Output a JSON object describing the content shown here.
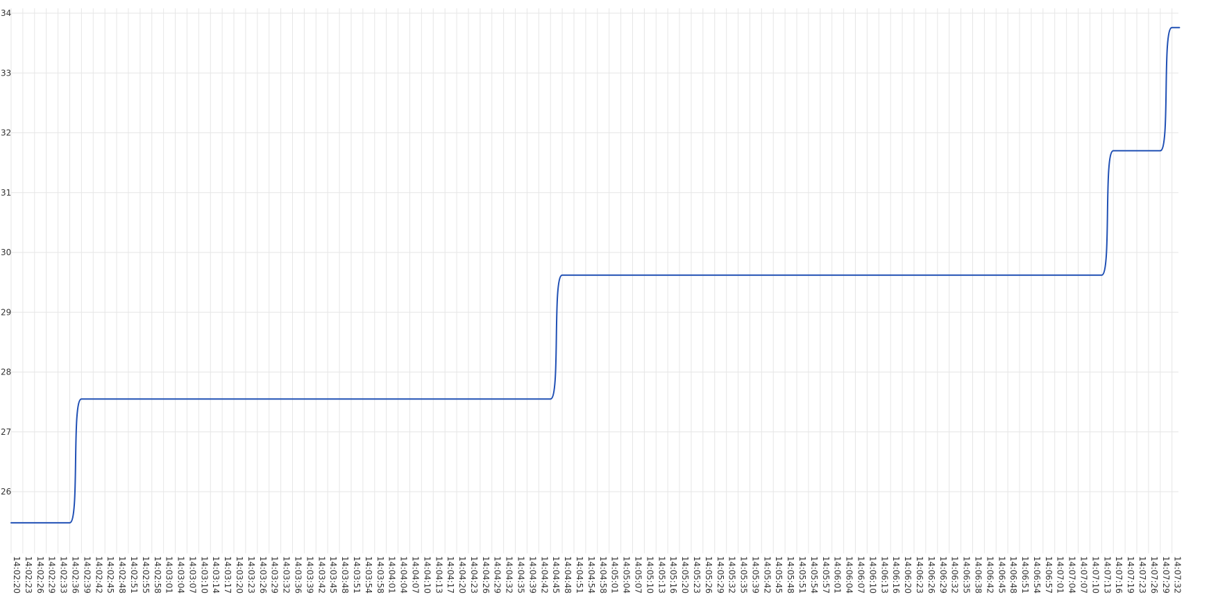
{
  "chart_data": {
    "type": "line",
    "title": "",
    "xlabel": "",
    "ylabel": "",
    "ylim": [
      25.3,
      34.2
    ],
    "yticks": [
      26,
      27,
      28,
      29,
      30,
      31,
      32,
      33,
      34
    ],
    "grid": true,
    "legend": "none",
    "color": "#1f4fb4",
    "x_ticks": [
      "14:02:20",
      "14:02:23",
      "14:02:26",
      "14:02:29",
      "14:02:33",
      "14:02:36",
      "14:02:39",
      "14:02:42",
      "14:02:45",
      "14:02:48",
      "14:02:51",
      "14:02:55",
      "14:02:58",
      "14:03:01",
      "14:03:04",
      "14:03:07",
      "14:03:10",
      "14:03:14",
      "14:03:17",
      "14:03:20",
      "14:03:23",
      "14:03:26",
      "14:03:29",
      "14:03:32",
      "14:03:36",
      "14:03:39",
      "14:03:42",
      "14:03:45",
      "14:03:48",
      "14:03:51",
      "14:03:54",
      "14:03:58",
      "14:04:01",
      "14:04:04",
      "14:04:07",
      "14:04:10",
      "14:04:13",
      "14:04:17",
      "14:04:20",
      "14:04:23",
      "14:04:26",
      "14:04:29",
      "14:04:32",
      "14:04:35",
      "14:04:39",
      "14:04:42",
      "14:04:45",
      "14:04:48",
      "14:04:51",
      "14:04:54",
      "14:04:58",
      "14:05:01",
      "14:05:04",
      "14:05:07",
      "14:05:10",
      "14:05:13",
      "14:05:16",
      "14:05:20",
      "14:05:23",
      "14:05:26",
      "14:05:29",
      "14:05:32",
      "14:05:35",
      "14:05:39",
      "14:05:42",
      "14:05:45",
      "14:05:48",
      "14:05:51",
      "14:05:54",
      "14:05:57",
      "14:06:01",
      "14:06:04",
      "14:06:07",
      "14:06:10",
      "14:06:13",
      "14:06:16",
      "14:06:20",
      "14:06:23",
      "14:06:26",
      "14:06:29",
      "14:06:32",
      "14:06:35",
      "14:06:38",
      "14:06:42",
      "14:06:45",
      "14:06:48",
      "14:06:51",
      "14:06:54",
      "14:06:57",
      "14:07:01",
      "14:07:04",
      "14:07:07",
      "14:07:10",
      "14:07:13",
      "14:07:16",
      "14:07:19",
      "14:07:23",
      "14:07:26",
      "14:07:29",
      "14:07:32"
    ],
    "series": [
      {
        "x": [
          "14:02:20",
          "14:02:36",
          "14:02:39",
          "14:04:45",
          "14:04:48",
          "14:07:13",
          "14:07:16",
          "14:07:29",
          "14:07:32",
          "14:07:34"
        ],
        "y": [
          25.48,
          25.48,
          27.55,
          27.55,
          29.62,
          29.62,
          31.7,
          31.7,
          33.76,
          33.76
        ]
      }
    ]
  }
}
